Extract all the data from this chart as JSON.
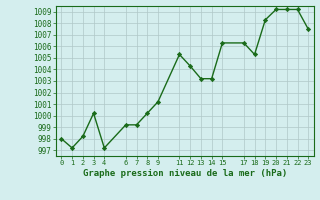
{
  "x": [
    0,
    1,
    2,
    3,
    4,
    6,
    7,
    8,
    9,
    11,
    12,
    13,
    14,
    15,
    17,
    18,
    19,
    20,
    21,
    22,
    23
  ],
  "y": [
    998.0,
    997.2,
    998.2,
    1000.2,
    997.2,
    999.2,
    999.2,
    1000.2,
    1001.2,
    1005.3,
    1004.3,
    1003.2,
    1003.2,
    1006.3,
    1006.3,
    1005.3,
    1008.3,
    1009.2,
    1009.2,
    1009.2,
    1007.5
  ],
  "line_color": "#1a6b1a",
  "marker_color": "#1a6b1a",
  "bg_color": "#d4eeee",
  "grid_color": "#b0c8c8",
  "title": "Graphe pression niveau de la mer (hPa)",
  "ylim_min": 997,
  "ylim_max": 1009,
  "ytick_step": 1,
  "xtick_labels": [
    0,
    1,
    2,
    3,
    4,
    6,
    7,
    8,
    9,
    11,
    12,
    13,
    14,
    15,
    17,
    18,
    19,
    20,
    21,
    22,
    23
  ],
  "xlim_min": -0.5,
  "xlim_max": 23.5
}
